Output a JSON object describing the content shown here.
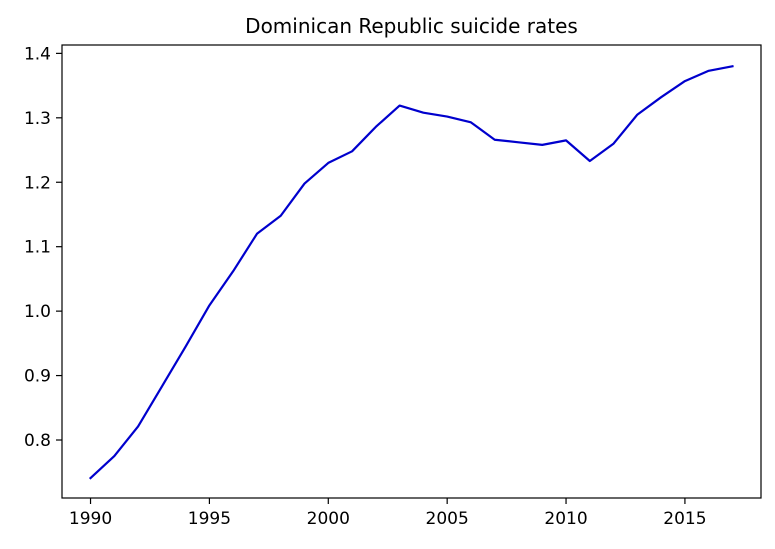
{
  "chart_data": {
    "type": "line",
    "title": "Dominican Republic suicide rates",
    "xlabel": "",
    "ylabel": "",
    "xlim": [
      1988.8,
      2018.2
    ],
    "ylim": [
      0.71,
      1.413
    ],
    "x_ticks": [
      1990,
      1995,
      2000,
      2005,
      2010,
      2015
    ],
    "y_ticks": [
      0.8,
      0.9,
      1.0,
      1.1,
      1.2,
      1.3,
      1.4
    ],
    "y_tick_labels": [
      "0.8",
      "0.9",
      "1.0",
      "1.1",
      "1.2",
      "1.3",
      "1.4"
    ],
    "grid": false,
    "line_color": "#0000cd",
    "series": [
      {
        "x": [
          1990,
          1991,
          1992,
          1993,
          1994,
          1995,
          1996,
          1997,
          1998,
          1999,
          2000,
          2001,
          2002,
          2003,
          2004,
          2005,
          2006,
          2007,
          2008,
          2009,
          2010,
          2011,
          2012,
          2013,
          2014,
          2015,
          2016,
          2017
        ],
        "values": [
          0.741,
          0.775,
          0.821,
          0.883,
          0.945,
          1.009,
          1.062,
          1.12,
          1.148,
          1.198,
          1.23,
          1.248,
          1.286,
          1.319,
          1.308,
          1.302,
          1.293,
          1.266,
          1.262,
          1.258,
          1.265,
          1.233,
          1.26,
          1.305,
          1.332,
          1.357,
          1.373,
          1.38
        ]
      }
    ]
  }
}
